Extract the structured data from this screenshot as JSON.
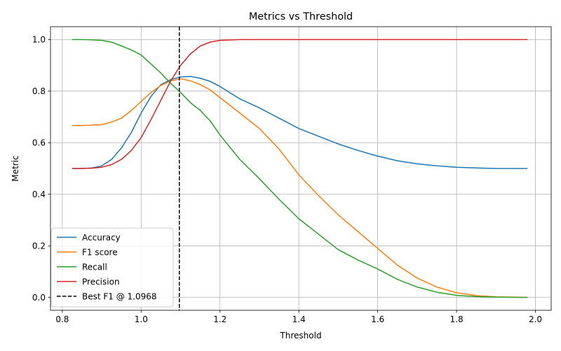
{
  "chart_data": {
    "type": "line",
    "title": "Metrics vs Threshold",
    "xlabel": "Threshold",
    "ylabel": "Metric",
    "xlim": [
      0.77,
      2.04
    ],
    "ylim": [
      -0.05,
      1.05
    ],
    "xticks": [
      "0.8",
      "1.0",
      "1.2",
      "1.4",
      "1.6",
      "1.8",
      "2.0"
    ],
    "xtick_values": [
      0.8,
      1.0,
      1.2,
      1.4,
      1.6,
      1.8,
      2.0
    ],
    "yticks": [
      "0.0",
      "0.2",
      "0.4",
      "0.6",
      "0.8",
      "1.0"
    ],
    "ytick_values": [
      0.0,
      0.2,
      0.4,
      0.6,
      0.8,
      1.0
    ],
    "grid": true,
    "legend_position": "lower-left",
    "x": [
      0.825,
      0.85,
      0.875,
      0.9,
      0.925,
      0.95,
      0.975,
      1.0,
      1.025,
      1.05,
      1.075,
      1.1,
      1.125,
      1.15,
      1.175,
      1.2,
      1.25,
      1.3,
      1.35,
      1.4,
      1.45,
      1.5,
      1.55,
      1.6,
      1.65,
      1.7,
      1.75,
      1.8,
      1.85,
      1.9,
      1.95,
      1.98
    ],
    "series": [
      {
        "name": "Accuracy",
        "color": "#1f77b4",
        "values": [
          0.5,
          0.5,
          0.502,
          0.51,
          0.535,
          0.58,
          0.64,
          0.715,
          0.78,
          0.825,
          0.845,
          0.855,
          0.857,
          0.85,
          0.838,
          0.818,
          0.77,
          0.735,
          0.695,
          0.655,
          0.625,
          0.595,
          0.57,
          0.548,
          0.53,
          0.518,
          0.51,
          0.505,
          0.502,
          0.5,
          0.5,
          0.5
        ]
      },
      {
        "name": "F1 score",
        "color": "#ff7f0e",
        "values": [
          0.667,
          0.667,
          0.668,
          0.67,
          0.68,
          0.695,
          0.725,
          0.76,
          0.795,
          0.822,
          0.84,
          0.848,
          0.84,
          0.825,
          0.805,
          0.775,
          0.715,
          0.655,
          0.575,
          0.475,
          0.395,
          0.32,
          0.255,
          0.19,
          0.125,
          0.075,
          0.04,
          0.018,
          0.007,
          0.002,
          0.001,
          0.0
        ]
      },
      {
        "name": "Recall",
        "color": "#2ca02c",
        "values": [
          1.0,
          1.0,
          0.999,
          0.997,
          0.99,
          0.975,
          0.96,
          0.94,
          0.905,
          0.87,
          0.83,
          0.795,
          0.755,
          0.725,
          0.685,
          0.63,
          0.535,
          0.46,
          0.38,
          0.305,
          0.245,
          0.185,
          0.145,
          0.11,
          0.07,
          0.04,
          0.02,
          0.008,
          0.003,
          0.001,
          0.0,
          0.0
        ]
      },
      {
        "name": "Precision",
        "color": "#d62728",
        "values": [
          0.5,
          0.5,
          0.501,
          0.505,
          0.515,
          0.535,
          0.57,
          0.62,
          0.69,
          0.765,
          0.84,
          0.9,
          0.945,
          0.975,
          0.99,
          0.997,
          1.0,
          1.0,
          1.0,
          1.0,
          1.0,
          1.0,
          1.0,
          1.0,
          1.0,
          1.0,
          1.0,
          1.0,
          1.0,
          1.0,
          1.0,
          1.0
        ]
      }
    ],
    "vline": {
      "name": "Best F1 @ 1.0968",
      "x": 1.0968,
      "color": "#000000",
      "style": "dashed"
    }
  }
}
